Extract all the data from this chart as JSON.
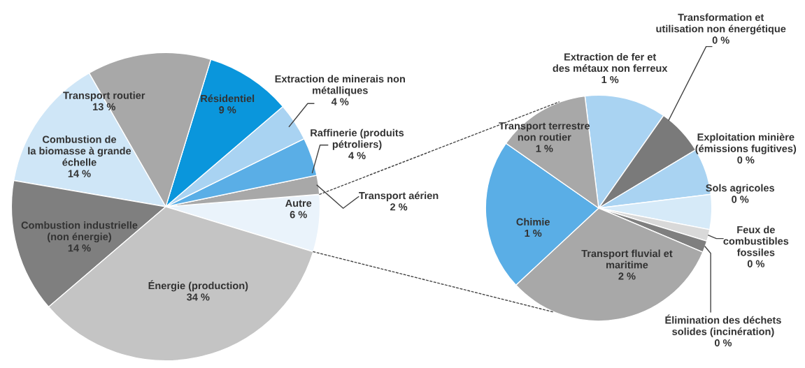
{
  "chart_data": [
    {
      "type": "pie",
      "categories": [
        "Autre",
        "Transport aérien",
        "Raffinerie (produits\npétroliers)",
        "Extraction de minerais non\nmétalliques",
        "Résidentiel",
        "Transport routier",
        "Combustion de\nla biomasse à grande\néchelle",
        "Combustion industrielle\n(non énergie)",
        "Énergie (production)"
      ],
      "values": [
        6,
        2,
        4,
        4,
        9,
        13,
        14,
        14,
        34
      ],
      "value_labels": [
        "6 %",
        "2 %",
        "4 %",
        "4 %",
        "9 %",
        "13 %",
        "14 %",
        "14 %",
        "34 %"
      ],
      "colors": [
        "#eaf3fb",
        "#a8a8a8",
        "#5aaee6",
        "#a9d3f2",
        "#0a96dc",
        "#a8a8a8",
        "#cfe6f7",
        "#7f7f7f",
        "#c4c4c4"
      ]
    },
    {
      "type": "pie",
      "categories": [
        "Extraction de fer et\ndes métaux non ferreux",
        "Transformation et\nutilisation non énergétique",
        "Exploitation minière\n(émissions fugitives)",
        "Sols agricoles",
        "Feux de\ncombustibles\nfossiles",
        "Élimination des déchets\nsolides (incinération)",
        "Transport fluvial et\nmaritime",
        "Chimie",
        "Transport terrestre\nnon routier"
      ],
      "values": [
        0.7,
        0.4,
        0.4,
        0.3,
        0.1,
        0.1,
        1.9,
        1.3,
        0.8
      ],
      "value_labels": [
        "1 %",
        "0 %",
        "0 %",
        "0 %",
        "0 %",
        "0 %",
        "2 %",
        "1 %",
        "1 %"
      ],
      "colors": [
        "#a9d3f2",
        "#7a7a7a",
        "#a9d3f2",
        "#d6eaf8",
        "#d9d9d9",
        "#7f7f7f",
        "#a8a8a8",
        "#5aaee6",
        "#a8a8a8"
      ]
    }
  ]
}
